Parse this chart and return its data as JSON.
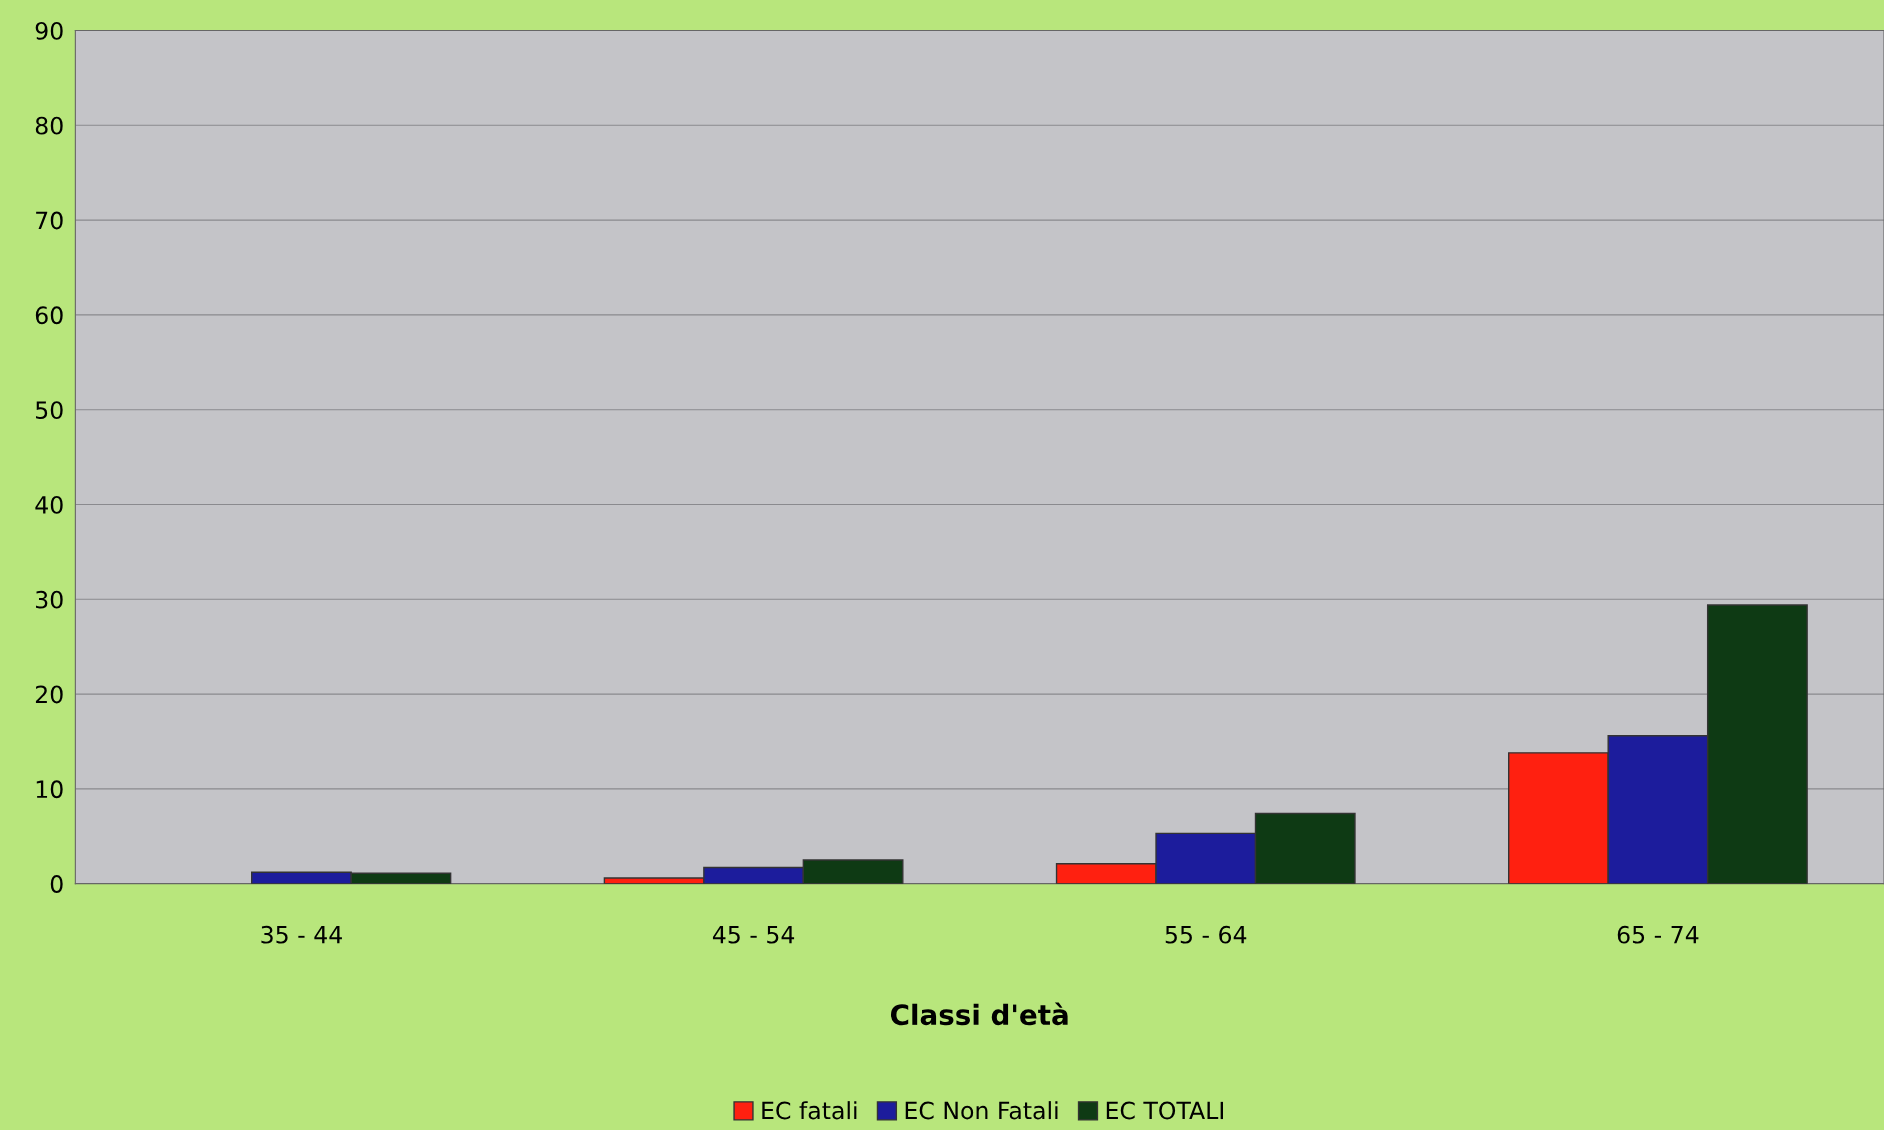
{
  "chart_data": {
    "type": "bar",
    "xlabel": "Classi d'età",
    "categories": [
      "35 - 44",
      "45 - 54",
      "55 - 64",
      "65 - 74"
    ],
    "series": [
      {
        "name": "EC fatali",
        "color": "#ff2010",
        "values": [
          null,
          0.6,
          2.1,
          13.8
        ]
      },
      {
        "name": "EC Non Fatali",
        "color": "#1c1c9c",
        "values": [
          1.2,
          1.7,
          5.3,
          15.6
        ]
      },
      {
        "name": "EC TOTALI",
        "color": "#0e3a14",
        "values": [
          1.1,
          2.5,
          7.4,
          29.4
        ]
      }
    ],
    "ylim": [
      0,
      90
    ],
    "yticks": [
      0,
      10,
      20,
      30,
      40,
      50,
      60,
      70,
      80,
      90
    ],
    "grid": "y",
    "legend": "bottom"
  }
}
